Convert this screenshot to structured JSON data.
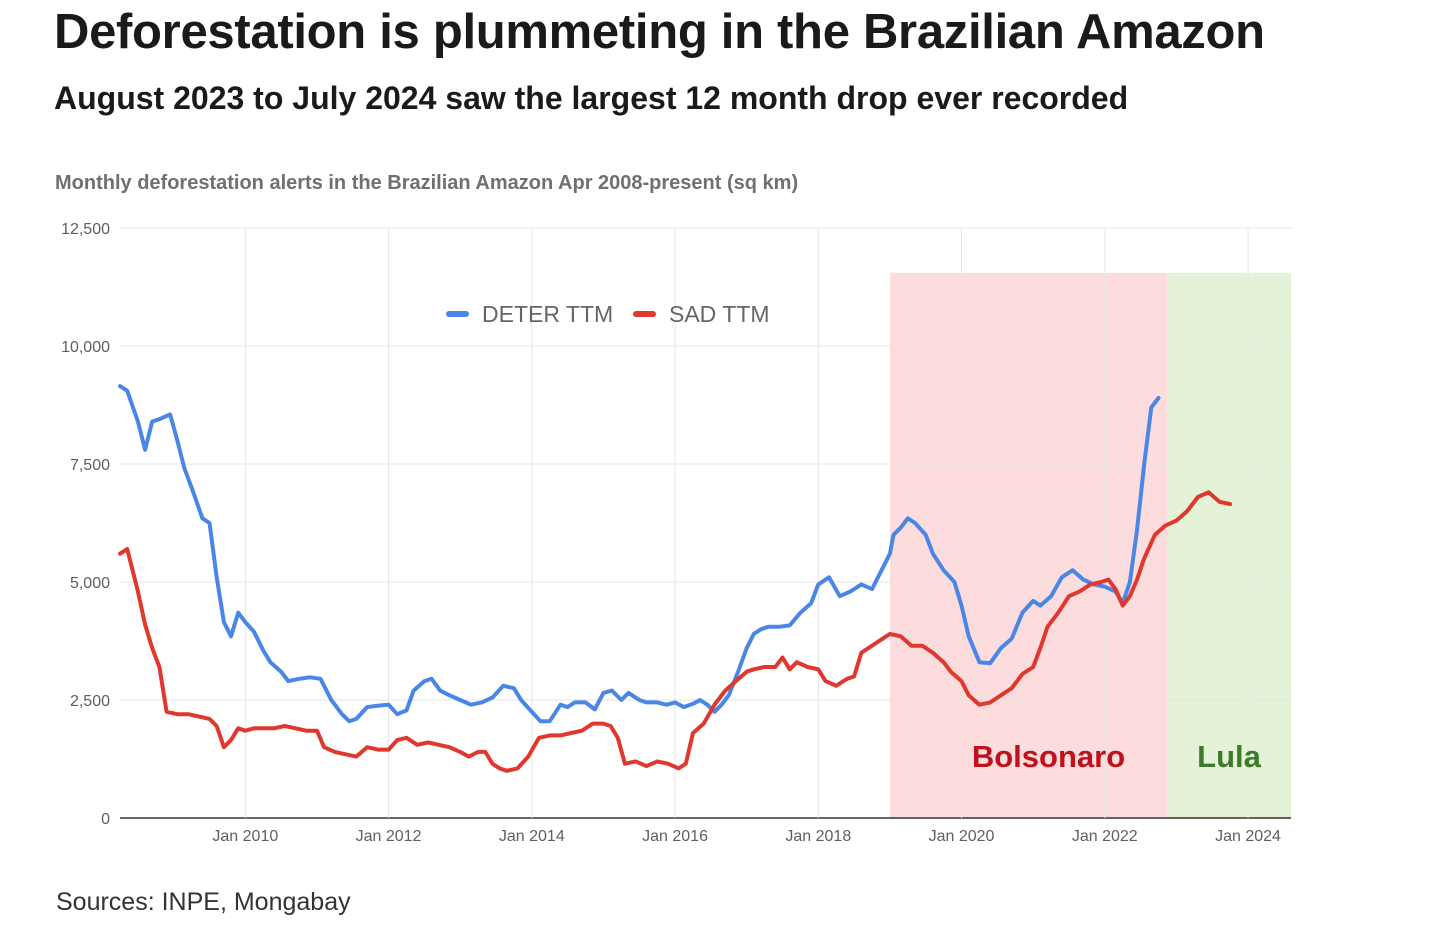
{
  "header": {
    "title": "Deforestation is plummeting in the Brazilian Amazon",
    "subtitle": "August 2023 to July 2024 saw the largest 12 month drop ever recorded"
  },
  "footer": {
    "source": "Sources: INPE, Mongabay"
  },
  "chart_data": {
    "type": "line",
    "title": "Monthly deforestation alerts in the Brazilian Amazon Apr 2008-present (sq km)",
    "xlabel": "",
    "ylabel": "",
    "xlim": [
      2008.25,
      2024.6
    ],
    "ylim": [
      0,
      12500
    ],
    "yticks": [
      0,
      2500,
      5000,
      7500,
      10000,
      12500
    ],
    "ytick_labels": [
      "0",
      "2,500",
      "5,000",
      "7,500",
      "10,000",
      "12,500"
    ],
    "xticks": [
      2010,
      2012,
      2014,
      2016,
      2018,
      2020,
      2022,
      2024
    ],
    "xtick_labels": [
      "Jan 2010",
      "Jan 2012",
      "Jan 2014",
      "Jan 2016",
      "Jan 2018",
      "Jan 2020",
      "Jan 2022",
      "Jan 2024"
    ],
    "grid": true,
    "legend_position": "top-center",
    "annotations": [
      {
        "label": "Bolsonaro",
        "x_start": 2019.0,
        "x_end": 2022.87,
        "fill": "#fcdcdc",
        "text_color": "#c0101a"
      },
      {
        "label": "Lula",
        "x_start": 2022.87,
        "x_end": 2024.6,
        "fill": "#e4f2d7",
        "text_color": "#3f7a2c"
      }
    ],
    "series": [
      {
        "name": "DETER TTM",
        "color": "#4a86e8",
        "points": [
          [
            2008.25,
            9150
          ],
          [
            2008.35,
            9050
          ],
          [
            2008.5,
            8400
          ],
          [
            2008.6,
            7800
          ],
          [
            2008.7,
            8400
          ],
          [
            2008.8,
            8450
          ],
          [
            2008.95,
            8550
          ],
          [
            2009.05,
            8000
          ],
          [
            2009.15,
            7400
          ],
          [
            2009.25,
            7000
          ],
          [
            2009.4,
            6350
          ],
          [
            2009.5,
            6250
          ],
          [
            2009.6,
            5100
          ],
          [
            2009.7,
            4150
          ],
          [
            2009.8,
            3850
          ],
          [
            2009.9,
            4350
          ],
          [
            2010.0,
            4150
          ],
          [
            2010.12,
            3950
          ],
          [
            2010.25,
            3550
          ],
          [
            2010.35,
            3300
          ],
          [
            2010.5,
            3100
          ],
          [
            2010.6,
            2900
          ],
          [
            2010.75,
            2950
          ],
          [
            2010.9,
            2980
          ],
          [
            2011.05,
            2950
          ],
          [
            2011.2,
            2500
          ],
          [
            2011.35,
            2200
          ],
          [
            2011.45,
            2050
          ],
          [
            2011.55,
            2100
          ],
          [
            2011.7,
            2350
          ],
          [
            2011.85,
            2380
          ],
          [
            2012.0,
            2400
          ],
          [
            2012.12,
            2200
          ],
          [
            2012.25,
            2280
          ],
          [
            2012.35,
            2700
          ],
          [
            2012.5,
            2900
          ],
          [
            2012.6,
            2950
          ],
          [
            2012.72,
            2700
          ],
          [
            2012.85,
            2600
          ],
          [
            2013.0,
            2500
          ],
          [
            2013.15,
            2400
          ],
          [
            2013.3,
            2450
          ],
          [
            2013.45,
            2550
          ],
          [
            2013.6,
            2800
          ],
          [
            2013.75,
            2750
          ],
          [
            2013.85,
            2500
          ],
          [
            2014.0,
            2250
          ],
          [
            2014.12,
            2050
          ],
          [
            2014.25,
            2050
          ],
          [
            2014.4,
            2400
          ],
          [
            2014.5,
            2350
          ],
          [
            2014.6,
            2450
          ],
          [
            2014.75,
            2450
          ],
          [
            2014.88,
            2300
          ],
          [
            2015.0,
            2650
          ],
          [
            2015.12,
            2700
          ],
          [
            2015.25,
            2500
          ],
          [
            2015.35,
            2650
          ],
          [
            2015.5,
            2500
          ],
          [
            2015.6,
            2450
          ],
          [
            2015.75,
            2450
          ],
          [
            2015.88,
            2400
          ],
          [
            2016.0,
            2450
          ],
          [
            2016.12,
            2350
          ],
          [
            2016.25,
            2420
          ],
          [
            2016.35,
            2500
          ],
          [
            2016.45,
            2400
          ],
          [
            2016.55,
            2250
          ],
          [
            2016.65,
            2400
          ],
          [
            2016.75,
            2600
          ],
          [
            2016.88,
            3100
          ],
          [
            2017.0,
            3600
          ],
          [
            2017.1,
            3900
          ],
          [
            2017.2,
            4000
          ],
          [
            2017.3,
            4050
          ],
          [
            2017.45,
            4050
          ],
          [
            2017.6,
            4080
          ],
          [
            2017.75,
            4350
          ],
          [
            2017.9,
            4550
          ],
          [
            2018.0,
            4950
          ],
          [
            2018.15,
            5100
          ],
          [
            2018.3,
            4700
          ],
          [
            2018.45,
            4800
          ],
          [
            2018.6,
            4950
          ],
          [
            2018.75,
            4850
          ],
          [
            2018.9,
            5300
          ],
          [
            2019.0,
            5600
          ],
          [
            2019.05,
            6000
          ],
          [
            2019.15,
            6150
          ],
          [
            2019.25,
            6350
          ],
          [
            2019.35,
            6250
          ],
          [
            2019.5,
            6000
          ],
          [
            2019.6,
            5600
          ],
          [
            2019.75,
            5250
          ],
          [
            2019.9,
            5000
          ],
          [
            2020.0,
            4500
          ],
          [
            2020.1,
            3850
          ],
          [
            2020.25,
            3300
          ],
          [
            2020.4,
            3280
          ],
          [
            2020.55,
            3600
          ],
          [
            2020.7,
            3800
          ],
          [
            2020.85,
            4350
          ],
          [
            2021.0,
            4600
          ],
          [
            2021.1,
            4500
          ],
          [
            2021.25,
            4700
          ],
          [
            2021.4,
            5100
          ],
          [
            2021.55,
            5250
          ],
          [
            2021.7,
            5050
          ],
          [
            2021.85,
            4950
          ],
          [
            2022.0,
            4900
          ],
          [
            2022.15,
            4800
          ],
          [
            2022.25,
            4550
          ],
          [
            2022.35,
            5000
          ],
          [
            2022.45,
            6100
          ],
          [
            2022.55,
            7500
          ],
          [
            2022.65,
            8700
          ],
          [
            2022.75,
            8900
          ]
        ]
      },
      {
        "name": "SAD TTM",
        "color": "#e0382e",
        "points": [
          [
            2008.25,
            5600
          ],
          [
            2008.35,
            5700
          ],
          [
            2008.5,
            4800
          ],
          [
            2008.6,
            4100
          ],
          [
            2008.7,
            3600
          ],
          [
            2008.8,
            3200
          ],
          [
            2008.9,
            2250
          ],
          [
            2009.05,
            2200
          ],
          [
            2009.2,
            2200
          ],
          [
            2009.35,
            2150
          ],
          [
            2009.5,
            2100
          ],
          [
            2009.6,
            1950
          ],
          [
            2009.7,
            1500
          ],
          [
            2009.8,
            1650
          ],
          [
            2009.9,
            1900
          ],
          [
            2010.0,
            1850
          ],
          [
            2010.12,
            1900
          ],
          [
            2010.25,
            1900
          ],
          [
            2010.4,
            1900
          ],
          [
            2010.55,
            1950
          ],
          [
            2010.7,
            1900
          ],
          [
            2010.85,
            1850
          ],
          [
            2011.0,
            1850
          ],
          [
            2011.1,
            1500
          ],
          [
            2011.25,
            1400
          ],
          [
            2011.4,
            1350
          ],
          [
            2011.55,
            1300
          ],
          [
            2011.7,
            1500
          ],
          [
            2011.85,
            1450
          ],
          [
            2012.0,
            1450
          ],
          [
            2012.12,
            1650
          ],
          [
            2012.25,
            1700
          ],
          [
            2012.4,
            1550
          ],
          [
            2012.55,
            1600
          ],
          [
            2012.7,
            1550
          ],
          [
            2012.85,
            1500
          ],
          [
            2013.0,
            1400
          ],
          [
            2013.12,
            1300
          ],
          [
            2013.25,
            1400
          ],
          [
            2013.35,
            1400
          ],
          [
            2013.45,
            1150
          ],
          [
            2013.55,
            1050
          ],
          [
            2013.65,
            1000
          ],
          [
            2013.8,
            1050
          ],
          [
            2013.95,
            1300
          ],
          [
            2014.1,
            1700
          ],
          [
            2014.25,
            1750
          ],
          [
            2014.4,
            1750
          ],
          [
            2014.55,
            1800
          ],
          [
            2014.7,
            1850
          ],
          [
            2014.85,
            2000
          ],
          [
            2015.0,
            2000
          ],
          [
            2015.1,
            1950
          ],
          [
            2015.2,
            1700
          ],
          [
            2015.3,
            1150
          ],
          [
            2015.45,
            1200
          ],
          [
            2015.6,
            1100
          ],
          [
            2015.75,
            1200
          ],
          [
            2015.9,
            1150
          ],
          [
            2016.05,
            1050
          ],
          [
            2016.15,
            1150
          ],
          [
            2016.25,
            1800
          ],
          [
            2016.4,
            2000
          ],
          [
            2016.55,
            2400
          ],
          [
            2016.7,
            2700
          ],
          [
            2016.85,
            2900
          ],
          [
            2017.0,
            3100
          ],
          [
            2017.1,
            3150
          ],
          [
            2017.25,
            3200
          ],
          [
            2017.4,
            3200
          ],
          [
            2017.5,
            3400
          ],
          [
            2017.6,
            3150
          ],
          [
            2017.7,
            3300
          ],
          [
            2017.85,
            3200
          ],
          [
            2018.0,
            3150
          ],
          [
            2018.1,
            2900
          ],
          [
            2018.25,
            2800
          ],
          [
            2018.4,
            2950
          ],
          [
            2018.5,
            3000
          ],
          [
            2018.6,
            3500
          ],
          [
            2018.75,
            3650
          ],
          [
            2018.9,
            3800
          ],
          [
            2019.0,
            3900
          ],
          [
            2019.15,
            3850
          ],
          [
            2019.3,
            3650
          ],
          [
            2019.45,
            3650
          ],
          [
            2019.6,
            3500
          ],
          [
            2019.75,
            3300
          ],
          [
            2019.85,
            3100
          ],
          [
            2020.0,
            2900
          ],
          [
            2020.1,
            2600
          ],
          [
            2020.25,
            2400
          ],
          [
            2020.4,
            2450
          ],
          [
            2020.55,
            2600
          ],
          [
            2020.7,
            2750
          ],
          [
            2020.85,
            3050
          ],
          [
            2021.0,
            3200
          ],
          [
            2021.1,
            3600
          ],
          [
            2021.2,
            4050
          ],
          [
            2021.35,
            4350
          ],
          [
            2021.5,
            4700
          ],
          [
            2021.65,
            4800
          ],
          [
            2021.8,
            4950
          ],
          [
            2021.95,
            5000
          ],
          [
            2022.05,
            5050
          ],
          [
            2022.15,
            4850
          ],
          [
            2022.25,
            4500
          ],
          [
            2022.35,
            4700
          ],
          [
            2022.45,
            5050
          ],
          [
            2022.55,
            5500
          ],
          [
            2022.7,
            6000
          ],
          [
            2022.85,
            6200
          ],
          [
            2023.0,
            6300
          ],
          [
            2023.15,
            6500
          ],
          [
            2023.3,
            6800
          ],
          [
            2023.45,
            6900
          ],
          [
            2023.6,
            6700
          ],
          [
            2023.75,
            6650
          ]
        ]
      }
    ]
  }
}
